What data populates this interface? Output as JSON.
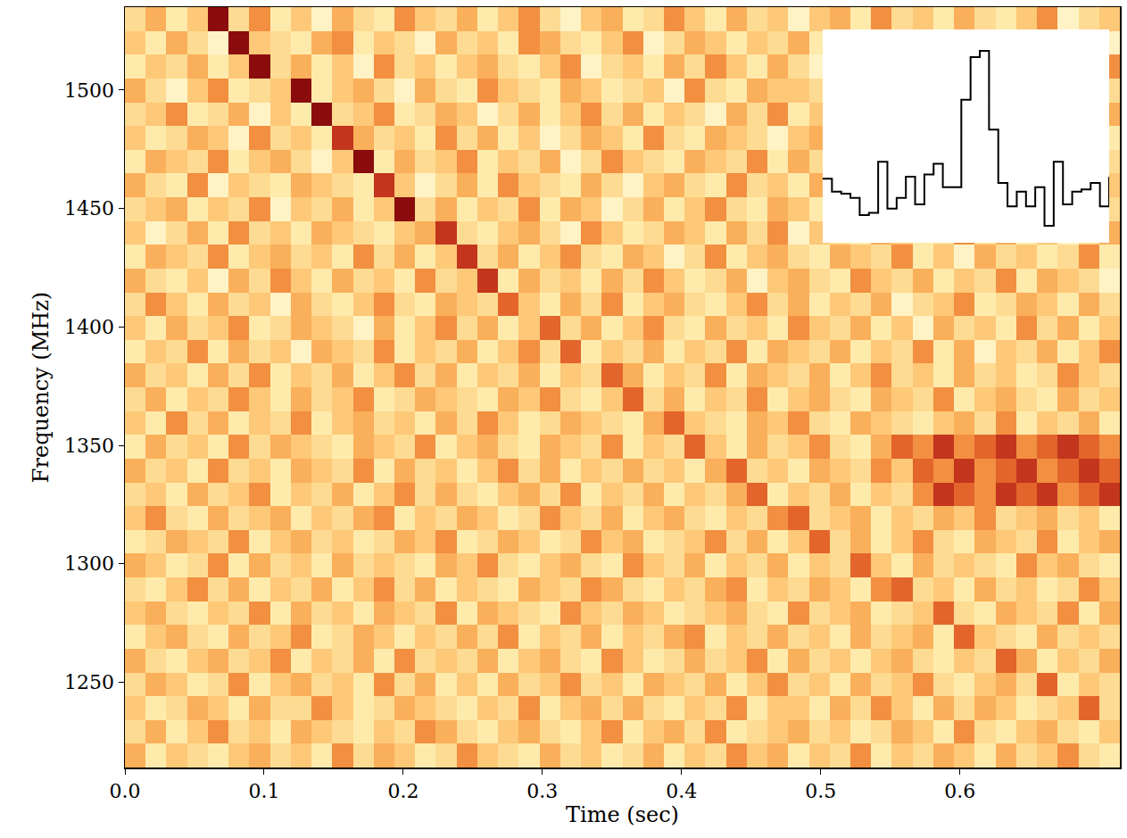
{
  "chart_data": {
    "type": "heatmap",
    "xlabel": "Time (sec)",
    "ylabel": "Frequency (MHz)",
    "xlim": [
      0,
      0.715
    ],
    "ylim": [
      1214,
      1535
    ],
    "xticks": [
      {
        "value": 0,
        "label": "0.0"
      },
      0.1,
      0.2,
      0.3,
      0.4,
      0.5,
      0.6
    ],
    "yticks": [
      1250,
      1300,
      1350,
      1400,
      1450,
      1500
    ],
    "color_range": [
      0,
      9
    ],
    "cells": [
      [
        3,
        5,
        2,
        4,
        9,
        3,
        6,
        2,
        4,
        1,
        5,
        3,
        2,
        6,
        4,
        3,
        5,
        2,
        4,
        6,
        3,
        1,
        4,
        5,
        2,
        3,
        6,
        4,
        2,
        5,
        3,
        4,
        1,
        4,
        5,
        2,
        6,
        3,
        4,
        2,
        5,
        3,
        2,
        4,
        6,
        1,
        3,
        4
      ],
      [
        4,
        2,
        5,
        3,
        1,
        9,
        4,
        3,
        2,
        5,
        6,
        2,
        4,
        3,
        1,
        5,
        3,
        4,
        2,
        6,
        5,
        3,
        2,
        4,
        6,
        1,
        3,
        5,
        4,
        2,
        4,
        3,
        5,
        2,
        6,
        3,
        1,
        4,
        5,
        2,
        3,
        6,
        4,
        2,
        5,
        3,
        4,
        1
      ],
      [
        2,
        4,
        3,
        5,
        2,
        4,
        9,
        3,
        5,
        2,
        4,
        1,
        6,
        3,
        4,
        2,
        4,
        5,
        3,
        2,
        4,
        6,
        1,
        3,
        4,
        2,
        5,
        3,
        6,
        4,
        2,
        5,
        3,
        1,
        4,
        5,
        2,
        3,
        6,
        4,
        2,
        4,
        3,
        5,
        1,
        4,
        2,
        6
      ],
      [
        5,
        3,
        1,
        4,
        6,
        2,
        3,
        4,
        9,
        2,
        4,
        5,
        3,
        1,
        5,
        3,
        2,
        6,
        4,
        3,
        2,
        5,
        4,
        2,
        3,
        4,
        1,
        6,
        3,
        2,
        5,
        4,
        4,
        3,
        5,
        2,
        4,
        6,
        2,
        3,
        5,
        1,
        3,
        4,
        2,
        5,
        6,
        3
      ],
      [
        3,
        4,
        6,
        2,
        3,
        5,
        1,
        4,
        2,
        9,
        3,
        4,
        6,
        2,
        3,
        5,
        4,
        1,
        3,
        5,
        2,
        4,
        6,
        3,
        5,
        2,
        4,
        3,
        1,
        5,
        3,
        6,
        2,
        4,
        3,
        6,
        5,
        1,
        4,
        2,
        4,
        3,
        5,
        2,
        3,
        4,
        1,
        5
      ],
      [
        4,
        2,
        3,
        5,
        4,
        1,
        6,
        3,
        4,
        2,
        8,
        5,
        3,
        4,
        2,
        6,
        3,
        5,
        2,
        4,
        1,
        3,
        5,
        4,
        2,
        6,
        3,
        2,
        5,
        4,
        3,
        1,
        4,
        5,
        2,
        3,
        6,
        4,
        2,
        5,
        3,
        2,
        4,
        6,
        1,
        3,
        5,
        2
      ],
      [
        2,
        5,
        4,
        3,
        6,
        2,
        4,
        5,
        3,
        1,
        4,
        9,
        2,
        5,
        3,
        4,
        6,
        2,
        4,
        3,
        5,
        1,
        3,
        6,
        4,
        3,
        2,
        5,
        4,
        3,
        6,
        2,
        5,
        3,
        4,
        1,
        2,
        5,
        3,
        4,
        6,
        4,
        2,
        3,
        5,
        2,
        4,
        3
      ],
      [
        5,
        3,
        2,
        6,
        1,
        4,
        3,
        2,
        5,
        4,
        3,
        2,
        8,
        4,
        1,
        3,
        5,
        2,
        6,
        4,
        3,
        2,
        5,
        3,
        1,
        4,
        5,
        3,
        2,
        6,
        3,
        4,
        2,
        5,
        3,
        4,
        6,
        2,
        1,
        5,
        3,
        4,
        2,
        5,
        3,
        6,
        2,
        4
      ],
      [
        3,
        4,
        5,
        2,
        4,
        3,
        6,
        1,
        4,
        3,
        5,
        2,
        4,
        9,
        3,
        5,
        2,
        4,
        3,
        6,
        2,
        5,
        4,
        1,
        3,
        5,
        2,
        4,
        6,
        3,
        2,
        5,
        4,
        2,
        3,
        5,
        1,
        4,
        6,
        3,
        2,
        5,
        4,
        3,
        2,
        4,
        5,
        3
      ],
      [
        4,
        1,
        3,
        5,
        2,
        6,
        3,
        4,
        2,
        5,
        4,
        3,
        2,
        4,
        5,
        8,
        3,
        2,
        4,
        5,
        3,
        1,
        6,
        4,
        2,
        3,
        5,
        4,
        2,
        5,
        3,
        6,
        1,
        4,
        3,
        2,
        5,
        4,
        2,
        3,
        6,
        3,
        5,
        2,
        4,
        1,
        3,
        5
      ],
      [
        2,
        5,
        4,
        3,
        6,
        2,
        4,
        5,
        3,
        4,
        2,
        6,
        3,
        5,
        2,
        4,
        8,
        3,
        5,
        2,
        4,
        6,
        3,
        2,
        5,
        4,
        1,
        3,
        6,
        2,
        4,
        5,
        3,
        2,
        5,
        4,
        3,
        6,
        2,
        4,
        1,
        5,
        3,
        4,
        2,
        3,
        6,
        2
      ],
      [
        5,
        3,
        2,
        4,
        1,
        5,
        3,
        6,
        4,
        2,
        5,
        3,
        4,
        2,
        6,
        3,
        4,
        8,
        2,
        5,
        3,
        4,
        2,
        5,
        3,
        6,
        4,
        2,
        3,
        5,
        1,
        4,
        5,
        3,
        2,
        6,
        4,
        3,
        5,
        2,
        4,
        3,
        6,
        2,
        5,
        4,
        3,
        1
      ],
      [
        3,
        6,
        4,
        2,
        5,
        3,
        4,
        1,
        5,
        3,
        2,
        4,
        6,
        3,
        2,
        5,
        4,
        3,
        7,
        4,
        2,
        5,
        3,
        6,
        2,
        4,
        5,
        3,
        2,
        4,
        6,
        3,
        5,
        2,
        4,
        3,
        5,
        1,
        3,
        4,
        6,
        2,
        3,
        5,
        4,
        2,
        5,
        3
      ],
      [
        4,
        2,
        5,
        3,
        4,
        6,
        2,
        3,
        5,
        4,
        3,
        1,
        5,
        2,
        4,
        6,
        3,
        5,
        2,
        4,
        7,
        3,
        5,
        2,
        4,
        6,
        3,
        2,
        5,
        3,
        4,
        2,
        6,
        4,
        3,
        5,
        2,
        4,
        1,
        5,
        3,
        4,
        2,
        6,
        3,
        5,
        2,
        4
      ],
      [
        2,
        4,
        3,
        6,
        2,
        5,
        3,
        4,
        1,
        5,
        4,
        3,
        6,
        2,
        4,
        3,
        5,
        2,
        4,
        6,
        3,
        7,
        2,
        4,
        3,
        5,
        2,
        4,
        3,
        6,
        2,
        5,
        4,
        3,
        5,
        2,
        4,
        3,
        6,
        2,
        5,
        1,
        4,
        3,
        5,
        2,
        4,
        6
      ],
      [
        5,
        3,
        4,
        2,
        5,
        3,
        6,
        2,
        4,
        3,
        5,
        2,
        4,
        6,
        3,
        5,
        2,
        4,
        3,
        5,
        2,
        4,
        3,
        7,
        5,
        2,
        4,
        3,
        6,
        2,
        5,
        4,
        3,
        5,
        2,
        4,
        6,
        3,
        4,
        2,
        5,
        3,
        4,
        2,
        3,
        6,
        4,
        3
      ],
      [
        3,
        5,
        2,
        4,
        3,
        6,
        4,
        2,
        5,
        3,
        4,
        6,
        2,
        3,
        5,
        4,
        3,
        2,
        5,
        4,
        6,
        3,
        2,
        4,
        7,
        3,
        5,
        2,
        4,
        3,
        6,
        2,
        4,
        5,
        3,
        2,
        5,
        4,
        3,
        6,
        2,
        4,
        5,
        3,
        2,
        5,
        3,
        4
      ],
      [
        4,
        2,
        6,
        3,
        5,
        2,
        4,
        3,
        6,
        2,
        4,
        5,
        3,
        4,
        2,
        5,
        3,
        6,
        4,
        2,
        3,
        5,
        4,
        3,
        2,
        5,
        7,
        4,
        3,
        2,
        5,
        4,
        6,
        3,
        2,
        5,
        4,
        3,
        2,
        4,
        5,
        3,
        6,
        2,
        4,
        3,
        5,
        2
      ],
      [
        2,
        5,
        3,
        4,
        2,
        6,
        3,
        5,
        4,
        3,
        2,
        5,
        4,
        3,
        6,
        2,
        4,
        5,
        3,
        2,
        5,
        4,
        3,
        6,
        2,
        4,
        3,
        7,
        4,
        2,
        5,
        3,
        4,
        6,
        3,
        2,
        5,
        7,
        6,
        8,
        6,
        7,
        8,
        6,
        7,
        8,
        7,
        6
      ],
      [
        5,
        3,
        4,
        2,
        6,
        3,
        4,
        2,
        5,
        4,
        3,
        6,
        2,
        5,
        3,
        4,
        2,
        4,
        6,
        3,
        5,
        2,
        4,
        3,
        5,
        3,
        4,
        2,
        5,
        7,
        3,
        4,
        2,
        5,
        4,
        3,
        6,
        4,
        7,
        6,
        8,
        6,
        7,
        8,
        6,
        7,
        8,
        7
      ],
      [
        3,
        4,
        2,
        5,
        3,
        4,
        6,
        2,
        4,
        3,
        5,
        2,
        4,
        6,
        3,
        5,
        3,
        2,
        4,
        5,
        3,
        6,
        2,
        4,
        3,
        5,
        2,
        4,
        3,
        5,
        7,
        2,
        4,
        3,
        5,
        2,
        4,
        3,
        6,
        8,
        7,
        6,
        8,
        7,
        8,
        6,
        7,
        8
      ],
      [
        4,
        6,
        3,
        2,
        5,
        3,
        4,
        5,
        2,
        4,
        3,
        5,
        6,
        2,
        4,
        3,
        5,
        4,
        2,
        3,
        6,
        4,
        3,
        5,
        2,
        4,
        5,
        3,
        2,
        4,
        3,
        6,
        7,
        3,
        4,
        5,
        2,
        4,
        3,
        5,
        4,
        6,
        3,
        4,
        5,
        3,
        4,
        2
      ],
      [
        2,
        3,
        5,
        4,
        3,
        6,
        2,
        4,
        5,
        3,
        4,
        2,
        3,
        5,
        4,
        6,
        2,
        3,
        5,
        4,
        2,
        3,
        6,
        4,
        5,
        2,
        3,
        4,
        6,
        3,
        5,
        2,
        4,
        7,
        3,
        5,
        2,
        4,
        6,
        3,
        2,
        5,
        4,
        3,
        6,
        2,
        4,
        5
      ],
      [
        5,
        4,
        2,
        3,
        6,
        2,
        5,
        3,
        4,
        2,
        5,
        3,
        4,
        3,
        2,
        5,
        4,
        6,
        3,
        2,
        4,
        5,
        3,
        2,
        6,
        4,
        3,
        5,
        2,
        4,
        3,
        5,
        2,
        4,
        3,
        7,
        4,
        2,
        5,
        3,
        4,
        3,
        2,
        6,
        4,
        5,
        3,
        2
      ],
      [
        3,
        2,
        4,
        6,
        3,
        5,
        2,
        4,
        3,
        5,
        2,
        4,
        6,
        3,
        5,
        2,
        4,
        3,
        2,
        5,
        4,
        3,
        6,
        5,
        3,
        2,
        4,
        3,
        5,
        6,
        2,
        4,
        3,
        5,
        4,
        2,
        6,
        7,
        3,
        4,
        2,
        5,
        3,
        4,
        2,
        3,
        6,
        4
      ],
      [
        4,
        5,
        3,
        2,
        4,
        3,
        6,
        2,
        5,
        3,
        4,
        2,
        5,
        4,
        3,
        6,
        2,
        5,
        4,
        3,
        2,
        6,
        4,
        3,
        5,
        4,
        2,
        3,
        4,
        5,
        3,
        2,
        6,
        3,
        4,
        5,
        2,
        3,
        4,
        7,
        3,
        2,
        5,
        4,
        3,
        6,
        2,
        5
      ],
      [
        2,
        4,
        5,
        3,
        2,
        5,
        3,
        4,
        6,
        2,
        3,
        5,
        4,
        2,
        4,
        3,
        5,
        3,
        6,
        2,
        4,
        3,
        5,
        2,
        4,
        3,
        5,
        6,
        2,
        4,
        3,
        5,
        3,
        4,
        2,
        5,
        3,
        4,
        5,
        2,
        7,
        4,
        3,
        2,
        5,
        3,
        4,
        3
      ],
      [
        5,
        3,
        2,
        4,
        5,
        3,
        4,
        6,
        2,
        4,
        3,
        5,
        2,
        6,
        3,
        4,
        3,
        5,
        2,
        4,
        5,
        3,
        2,
        6,
        4,
        2,
        3,
        5,
        3,
        4,
        6,
        2,
        5,
        3,
        4,
        2,
        4,
        5,
        3,
        2,
        4,
        3,
        7,
        5,
        2,
        4,
        3,
        5
      ],
      [
        3,
        5,
        4,
        2,
        3,
        6,
        2,
        4,
        5,
        3,
        4,
        2,
        6,
        3,
        5,
        2,
        4,
        2,
        5,
        3,
        4,
        6,
        3,
        4,
        2,
        5,
        4,
        3,
        5,
        2,
        4,
        6,
        3,
        4,
        2,
        5,
        3,
        4,
        6,
        3,
        2,
        4,
        5,
        3,
        7,
        2,
        4,
        3
      ],
      [
        4,
        2,
        3,
        5,
        4,
        2,
        5,
        3,
        3,
        6,
        4,
        2,
        3,
        5,
        4,
        3,
        2,
        4,
        3,
        6,
        2,
        4,
        5,
        3,
        5,
        3,
        2,
        4,
        3,
        6,
        2,
        4,
        4,
        2,
        5,
        3,
        6,
        4,
        2,
        5,
        3,
        5,
        4,
        2,
        3,
        4,
        7,
        3
      ],
      [
        3,
        5,
        2,
        4,
        6,
        3,
        4,
        2,
        5,
        4,
        3,
        2,
        4,
        3,
        6,
        5,
        3,
        2,
        4,
        5,
        3,
        2,
        4,
        6,
        2,
        4,
        5,
        3,
        6,
        2,
        3,
        4,
        5,
        3,
        4,
        2,
        3,
        5,
        4,
        2,
        6,
        3,
        2,
        4,
        5,
        3,
        2,
        4
      ],
      [
        5,
        2,
        4,
        3,
        2,
        4,
        5,
        3,
        4,
        2,
        6,
        3,
        5,
        4,
        2,
        3,
        6,
        4,
        3,
        2,
        5,
        3,
        4,
        2,
        3,
        5,
        2,
        4,
        3,
        6,
        4,
        5,
        2,
        4,
        3,
        6,
        2,
        4,
        3,
        5,
        4,
        2,
        5,
        3,
        4,
        6,
        3,
        2
      ]
    ],
    "inset": {
      "type": "line",
      "line_style": "steps",
      "color": "#000000",
      "tick_labels": false,
      "xlim": [
        0,
        31
      ],
      "ylim": [
        0,
        1
      ],
      "values": [
        0.3,
        0.24,
        0.23,
        0.21,
        0.13,
        0.14,
        0.38,
        0.16,
        0.21,
        0.31,
        0.18,
        0.32,
        0.37,
        0.26,
        0.26,
        0.67,
        0.87,
        0.9,
        0.53,
        0.28,
        0.17,
        0.24,
        0.17,
        0.26,
        0.08,
        0.38,
        0.18,
        0.24,
        0.25,
        0.28,
        0.17,
        0.31
      ]
    }
  }
}
